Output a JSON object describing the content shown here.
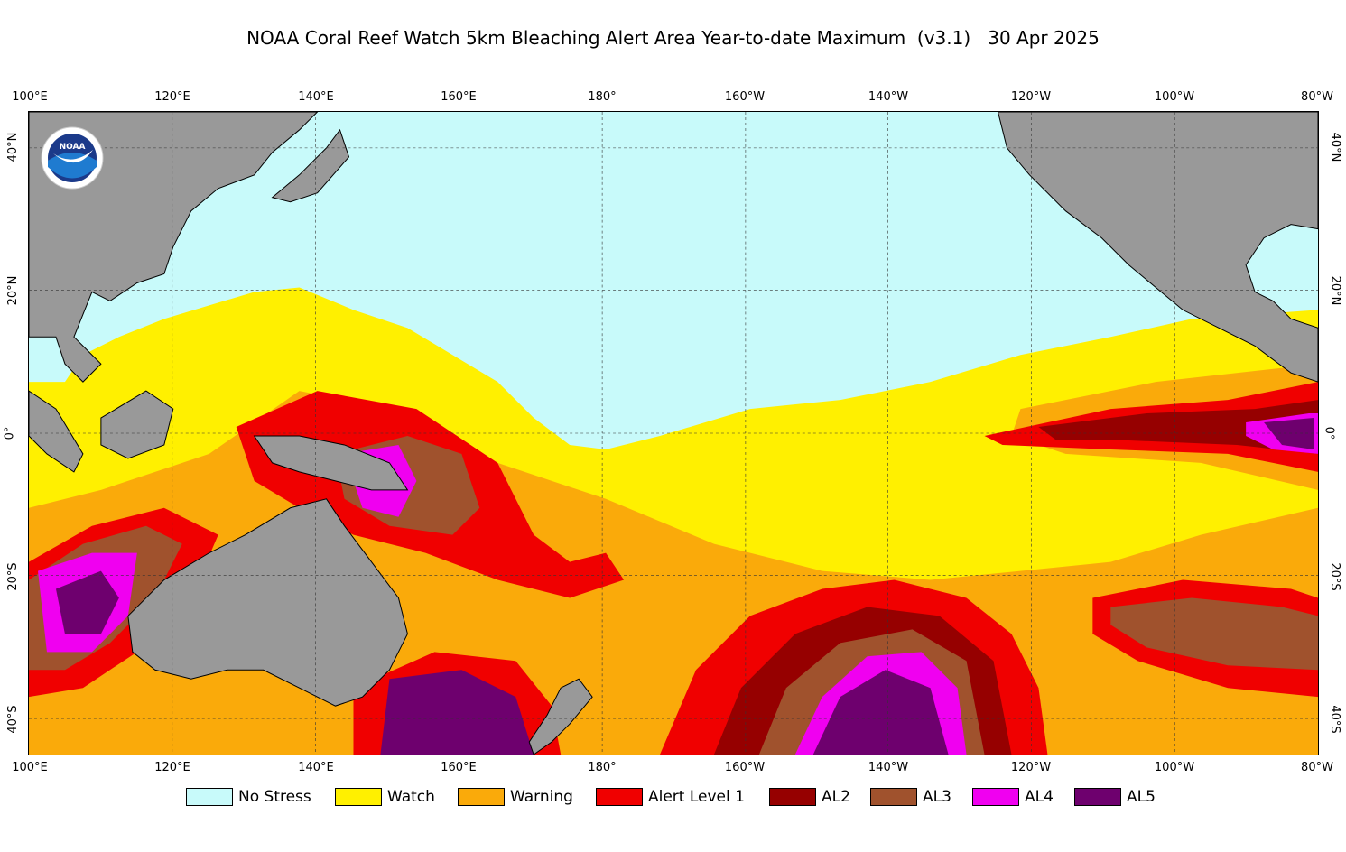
{
  "title": "NOAA Coral Reef Watch 5km Bleaching Alert Area Year-to-date Maximum  (v3.1)   30 Apr 2025",
  "lon_labels": [
    "100°E",
    "120°E",
    "140°E",
    "160°E",
    "180°",
    "160°W",
    "140°W",
    "120°W",
    "100°W",
    "80°W"
  ],
  "lat_labels": [
    "40°N",
    "20°N",
    "0°",
    "20°S",
    "40°S"
  ],
  "logo_text": "NOAA",
  "legend": [
    {
      "label": "No Stress",
      "color": "#c8fafa"
    },
    {
      "label": "Watch",
      "color": "#fff000"
    },
    {
      "label": "Warning",
      "color": "#faaa0a"
    },
    {
      "label": "Alert Level 1",
      "color": "#f00000"
    },
    {
      "label": "AL2",
      "color": "#960000"
    },
    {
      "label": "AL3",
      "color": "#a0522d"
    },
    {
      "label": "AL4",
      "color": "#f000f0"
    },
    {
      "label": "AL5",
      "color": "#6e006e"
    }
  ],
  "colors": {
    "land": "#999999",
    "grid": "#333333"
  }
}
